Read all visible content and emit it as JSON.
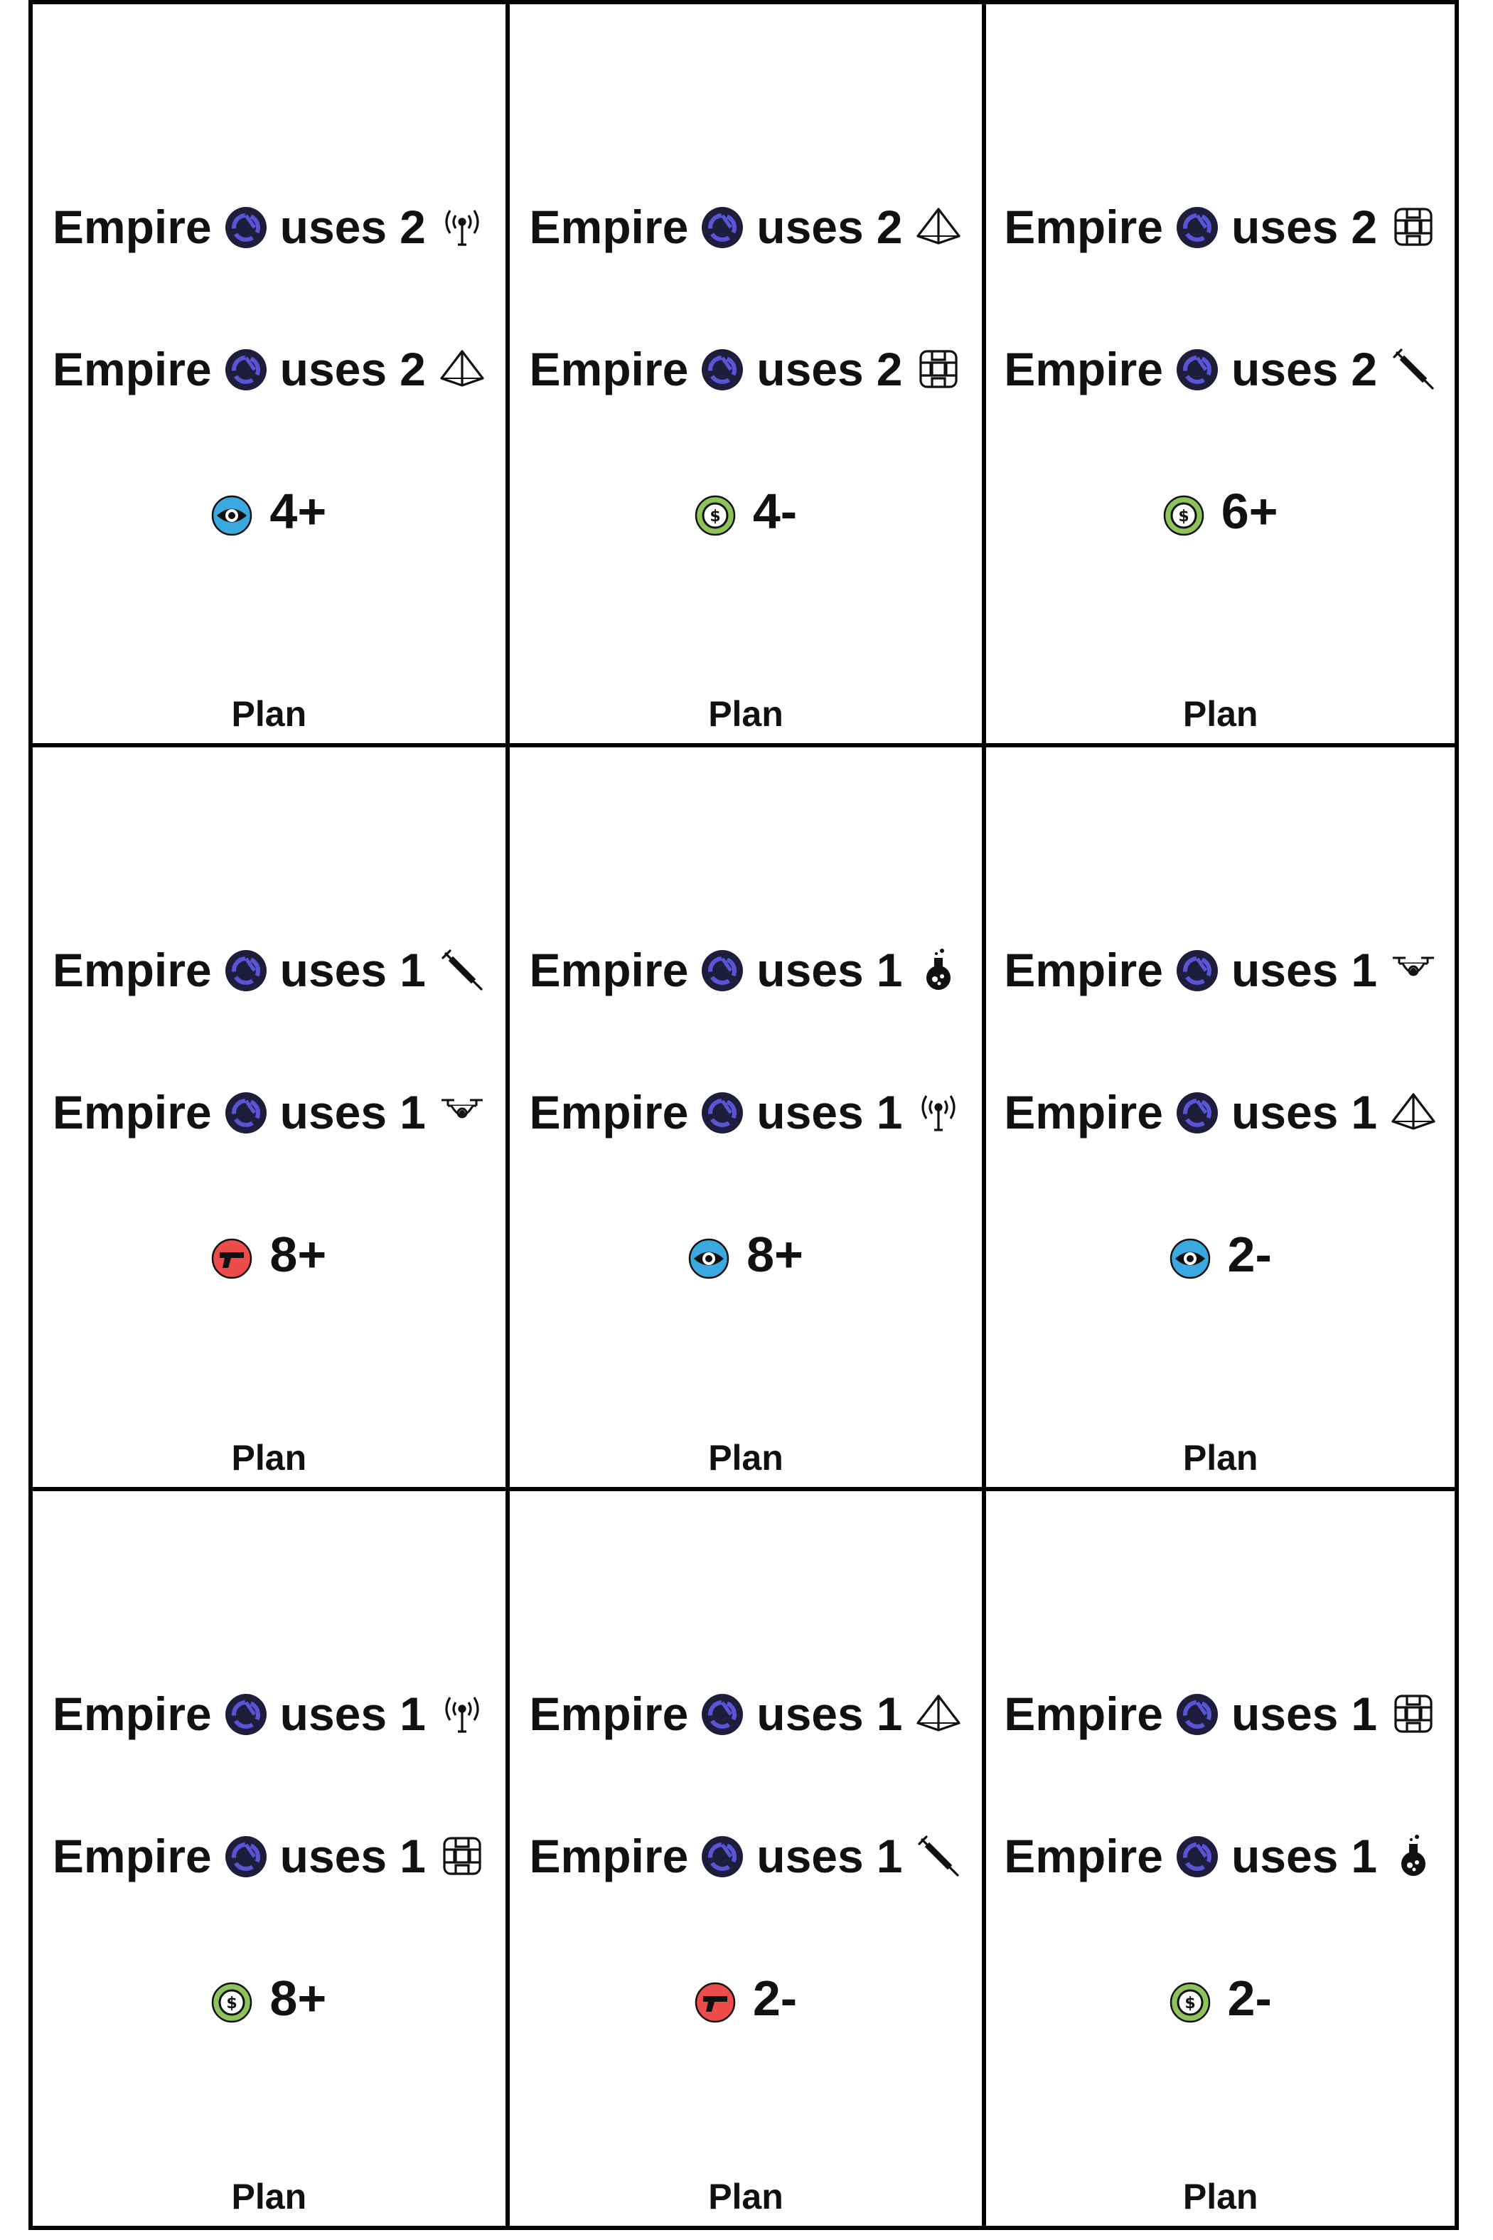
{
  "cards": [
    {
      "rules": [
        {
          "subject": "Empire",
          "verb": "uses",
          "count": "2",
          "resource_icon": "antenna-icon"
        },
        {
          "subject": "Empire",
          "verb": "uses",
          "count": "2",
          "resource_icon": "pyramid-icon"
        }
      ],
      "threshold": {
        "stat_icon": "eye-icon",
        "value": "4+"
      },
      "footer": "Plan"
    },
    {
      "rules": [
        {
          "subject": "Empire",
          "verb": "uses",
          "count": "2",
          "resource_icon": "pyramid-icon"
        },
        {
          "subject": "Empire",
          "verb": "uses",
          "count": "2",
          "resource_icon": "chip-icon"
        }
      ],
      "threshold": {
        "stat_icon": "dollar-icon",
        "value": "4-"
      },
      "footer": "Plan"
    },
    {
      "rules": [
        {
          "subject": "Empire",
          "verb": "uses",
          "count": "2",
          "resource_icon": "chip-icon"
        },
        {
          "subject": "Empire",
          "verb": "uses",
          "count": "2",
          "resource_icon": "syringe-icon"
        }
      ],
      "threshold": {
        "stat_icon": "dollar-icon",
        "value": "6+"
      },
      "footer": "Plan"
    },
    {
      "rules": [
        {
          "subject": "Empire",
          "verb": "uses",
          "count": "1",
          "resource_icon": "syringe-icon"
        },
        {
          "subject": "Empire",
          "verb": "uses",
          "count": "1",
          "resource_icon": "drone-icon"
        }
      ],
      "threshold": {
        "stat_icon": "gun-icon",
        "value": "8+"
      },
      "footer": "Plan"
    },
    {
      "rules": [
        {
          "subject": "Empire",
          "verb": "uses",
          "count": "1",
          "resource_icon": "flask-icon"
        },
        {
          "subject": "Empire",
          "verb": "uses",
          "count": "1",
          "resource_icon": "antenna-icon"
        }
      ],
      "threshold": {
        "stat_icon": "eye-icon",
        "value": "8+"
      },
      "footer": "Plan"
    },
    {
      "rules": [
        {
          "subject": "Empire",
          "verb": "uses",
          "count": "1",
          "resource_icon": "drone-icon"
        },
        {
          "subject": "Empire",
          "verb": "uses",
          "count": "1",
          "resource_icon": "pyramid-icon"
        }
      ],
      "threshold": {
        "stat_icon": "eye-icon",
        "value": "2-"
      },
      "footer": "Plan"
    },
    {
      "rules": [
        {
          "subject": "Empire",
          "verb": "uses",
          "count": "1",
          "resource_icon": "antenna-icon"
        },
        {
          "subject": "Empire",
          "verb": "uses",
          "count": "1",
          "resource_icon": "chip-icon"
        }
      ],
      "threshold": {
        "stat_icon": "dollar-icon",
        "value": "8+"
      },
      "footer": "Plan"
    },
    {
      "rules": [
        {
          "subject": "Empire",
          "verb": "uses",
          "count": "1",
          "resource_icon": "pyramid-icon"
        },
        {
          "subject": "Empire",
          "verb": "uses",
          "count": "1",
          "resource_icon": "syringe-icon"
        }
      ],
      "threshold": {
        "stat_icon": "gun-icon",
        "value": "2-"
      },
      "footer": "Plan"
    },
    {
      "rules": [
        {
          "subject": "Empire",
          "verb": "uses",
          "count": "1",
          "resource_icon": "chip-icon"
        },
        {
          "subject": "Empire",
          "verb": "uses",
          "count": "1",
          "resource_icon": "flask-icon"
        }
      ],
      "threshold": {
        "stat_icon": "dollar-icon",
        "value": "2-"
      },
      "footer": "Plan"
    }
  ],
  "colors": {
    "faction_fill": "#1e1e3c",
    "faction_ring": "#5a55d6",
    "eye_bg": "#3aa9e0",
    "dollar_bg": "#8ec35c",
    "gun_bg": "#ee4b4b",
    "border": "#000000"
  }
}
